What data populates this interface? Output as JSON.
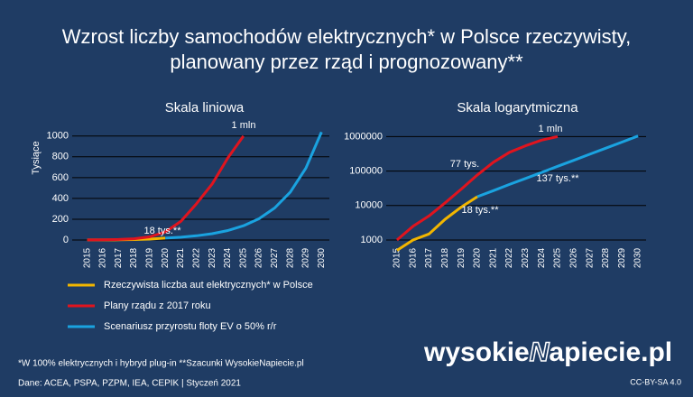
{
  "title": [
    "Wzrost liczby samochodów elektrycznych* w Polsce rzeczywisty,",
    "planowany przez rząd i prognozowany**"
  ],
  "chart_data": [
    {
      "type": "line",
      "title": "Skala liniowa",
      "y_label": "Tysiące",
      "log": false,
      "categories": [
        "2015",
        "2016",
        "2017",
        "2018",
        "2019",
        "2020",
        "2021",
        "2022",
        "2023",
        "2024",
        "2025",
        "2026",
        "2027",
        "2028",
        "2029",
        "2030"
      ],
      "ylim": [
        0,
        1050
      ],
      "yticks": [
        0,
        200,
        400,
        600,
        800,
        1000
      ],
      "grid": true,
      "series": [
        {
          "name": "Rzeczywista liczba aut elektrycznych* w Polsce",
          "color": "#f2b600",
          "values": [
            0.5,
            1,
            1.5,
            4,
            9,
            18,
            null,
            null,
            null,
            null,
            null,
            null,
            null,
            null,
            null,
            null
          ]
        },
        {
          "name": "Plany rządu z 2017 roku",
          "color": "#e0141e",
          "values": [
            1,
            2.5,
            5,
            12,
            30,
            77,
            180,
            350,
            540,
            790,
            1000,
            null,
            null,
            null,
            null,
            null
          ]
        },
        {
          "name": "Scenariusz przyrostu floty EV o 50% r/r",
          "color": "#1aa3e0",
          "values": [
            null,
            null,
            null,
            null,
            null,
            18,
            27,
            41,
            61,
            91,
            137,
            205,
            308,
            461,
            692,
            1038
          ]
        }
      ],
      "annotations": [
        "1 mln",
        "18 tys.**"
      ]
    },
    {
      "type": "line",
      "title": "Skala logarytmiczna",
      "log": true,
      "categories": [
        "2015",
        "2016",
        "2017",
        "2018",
        "2019",
        "2020",
        "2021",
        "2022",
        "2023",
        "2024",
        "2025",
        "2026",
        "2027",
        "2028",
        "2029",
        "2030"
      ],
      "ylim": [
        1000,
        1300000
      ],
      "yticks": [
        1000,
        10000,
        100000,
        1000000
      ],
      "grid": true,
      "series": [
        {
          "color": "#f2b600",
          "values": [
            500,
            1000,
            1500,
            4000,
            9000,
            18000,
            null,
            null,
            null,
            null,
            null,
            null,
            null,
            null,
            null,
            null
          ]
        },
        {
          "color": "#e0141e",
          "values": [
            1000,
            2500,
            5000,
            12000,
            30000,
            77000,
            180000,
            350000,
            540000,
            790000,
            1000000,
            null,
            null,
            null,
            null,
            null
          ]
        },
        {
          "color": "#1aa3e0",
          "values": [
            null,
            null,
            null,
            null,
            null,
            18000,
            27000,
            41000,
            61000,
            91000,
            137000,
            205000,
            308000,
            461000,
            692000,
            1038000
          ]
        }
      ],
      "annotations": [
        "1 mln",
        "77 tys.",
        "137 tys.**",
        "18 tys.**"
      ]
    }
  ],
  "footnote": "*W 100% elektrycznych i hybryd plug-in   **Szacunki WysokieNapiecie.pl",
  "source": "Dane: ACEA, PSPA, PZPM, IEA, CEPIK |  Styczeń 2021",
  "logo": [
    "wysokie",
    "N",
    "apiecie.pl"
  ],
  "license": "CC-BY-SA 4.0"
}
